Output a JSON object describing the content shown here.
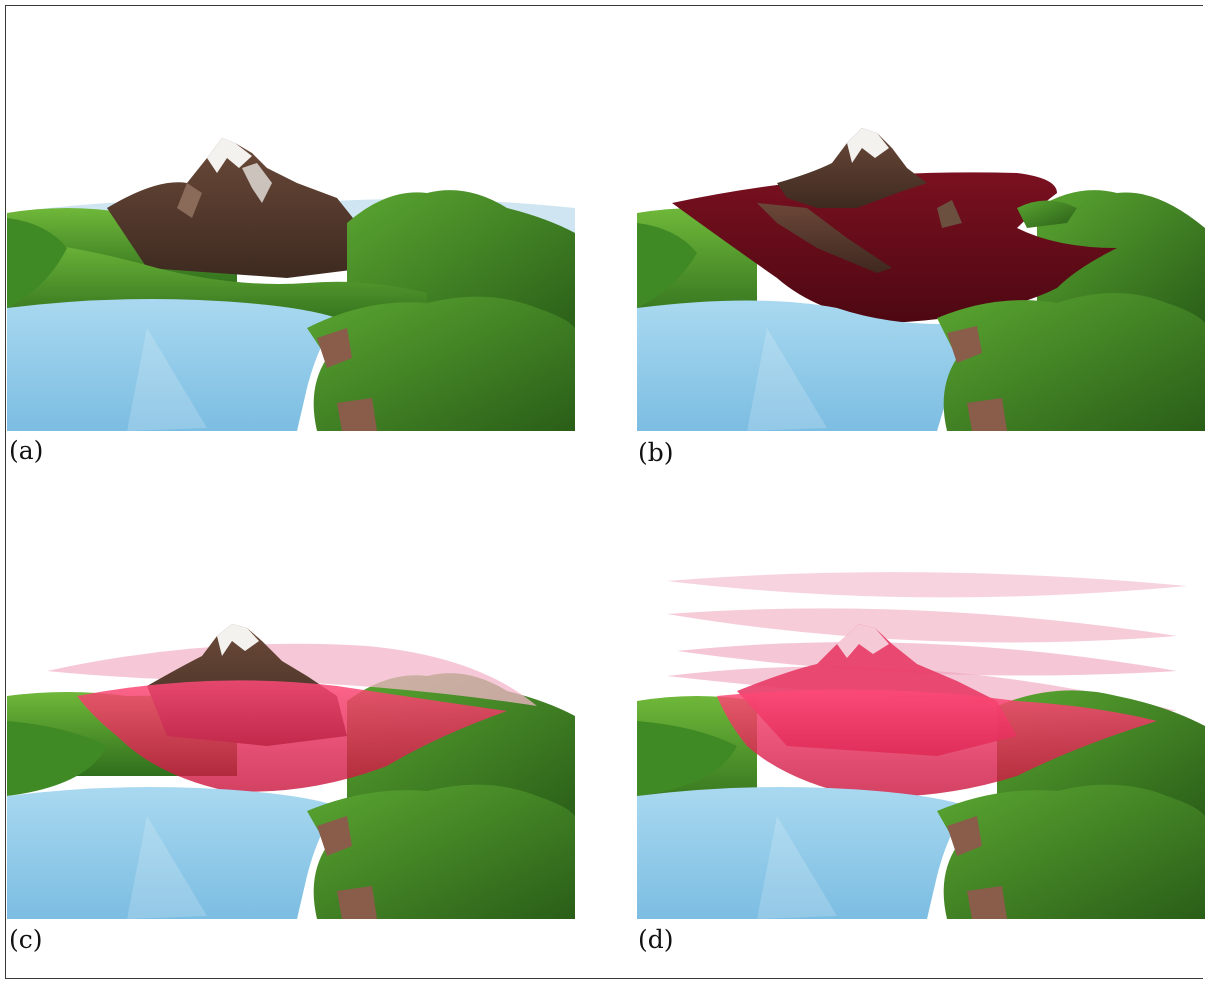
{
  "figure": {
    "panels": [
      {
        "id": "a",
        "caption": "(a)",
        "description_icon": "terrain-render-no-layers"
      },
      {
        "id": "b",
        "caption": "(b)",
        "description_icon": "terrain-render-opaque-layer"
      },
      {
        "id": "c",
        "caption": "(c)",
        "description_icon": "terrain-render-translucent-layers"
      },
      {
        "id": "d",
        "caption": "(d)",
        "description_icon": "terrain-render-stacked-layers"
      }
    ]
  },
  "colors": {
    "water": "#8ec9e8",
    "grass": "#4f9a2c",
    "rock": "#5a3e30",
    "snow": "#f2f0ee",
    "opaque_layer": "#6a0d1c",
    "translucent_layer": "#e8336a",
    "pale_layer": "#f3c1d2"
  }
}
